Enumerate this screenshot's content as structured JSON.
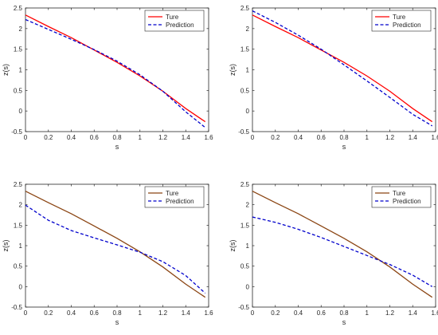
{
  "chart_data": [
    {
      "type": "line",
      "xlabel": "s",
      "ylabel": "z(s)",
      "xlim": [
        0,
        1.6
      ],
      "ylim": [
        -0.5,
        2.5
      ],
      "xticks": [
        "0",
        "0.2",
        "0.4",
        "0.6",
        "0.8",
        "1",
        "1.2",
        "1.4",
        "1.6"
      ],
      "yticks": [
        "-0.5",
        "0",
        "0.5",
        "1",
        "1.5",
        "2",
        "2.5"
      ],
      "legend_position": "top-right",
      "series": [
        {
          "name": "Ture",
          "color": "#ff0000",
          "style": "solid",
          "x": [
            0,
            0.2,
            0.4,
            0.6,
            0.8,
            1.0,
            1.2,
            1.4,
            1.57
          ],
          "y": [
            2.33,
            2.05,
            1.78,
            1.48,
            1.18,
            0.85,
            0.48,
            0.06,
            -0.26
          ]
        },
        {
          "name": "Prediction",
          "color": "#0000cc",
          "style": "dashed",
          "x": [
            0,
            0.2,
            0.4,
            0.6,
            0.8,
            1.0,
            1.2,
            1.4,
            1.57
          ],
          "y": [
            2.22,
            1.98,
            1.74,
            1.49,
            1.21,
            0.88,
            0.48,
            -0.02,
            -0.4
          ]
        }
      ]
    },
    {
      "type": "line",
      "xlabel": "s",
      "ylabel": "z(s)",
      "xlim": [
        0,
        1.6
      ],
      "ylim": [
        -0.5,
        2.5
      ],
      "xticks": [
        "0",
        "0.2",
        "0.4",
        "0.6",
        "0.8",
        "1",
        "1.2",
        "1.4",
        "1.6"
      ],
      "yticks": [
        "-0.5",
        "0",
        "0.5",
        "1",
        "1.5",
        "2",
        "2.5"
      ],
      "legend_position": "top-right",
      "series": [
        {
          "name": "Ture",
          "color": "#ff0000",
          "style": "solid",
          "x": [
            0,
            0.2,
            0.4,
            0.6,
            0.8,
            1.0,
            1.2,
            1.4,
            1.57
          ],
          "y": [
            2.33,
            2.05,
            1.78,
            1.48,
            1.18,
            0.85,
            0.48,
            0.06,
            -0.26
          ]
        },
        {
          "name": "Prediction",
          "color": "#0000cc",
          "style": "dashed",
          "x": [
            0,
            0.2,
            0.4,
            0.6,
            0.8,
            1.0,
            1.2,
            1.4,
            1.57
          ],
          "y": [
            2.43,
            2.15,
            1.84,
            1.5,
            1.12,
            0.73,
            0.33,
            -0.08,
            -0.36
          ]
        }
      ]
    },
    {
      "type": "line",
      "xlabel": "s",
      "ylabel": "z(s)",
      "xlim": [
        0,
        1.6
      ],
      "ylim": [
        -0.5,
        2.5
      ],
      "xticks": [
        "0",
        "0.2",
        "0.4",
        "0.6",
        "0.8",
        "1",
        "1.2",
        "1.4",
        "1.6"
      ],
      "yticks": [
        "-0.5",
        "0",
        "0.5",
        "1",
        "1.5",
        "2",
        "2.5"
      ],
      "legend_position": "top-right",
      "series": [
        {
          "name": "Ture",
          "color": "#8b4513",
          "style": "solid",
          "x": [
            0,
            0.2,
            0.4,
            0.6,
            0.8,
            1.0,
            1.2,
            1.4,
            1.57
          ],
          "y": [
            2.33,
            2.05,
            1.78,
            1.48,
            1.18,
            0.85,
            0.48,
            0.06,
            -0.26
          ]
        },
        {
          "name": "Prediction",
          "color": "#0000cc",
          "style": "dashed",
          "x": [
            0,
            0.2,
            0.4,
            0.6,
            0.8,
            1.0,
            1.2,
            1.4,
            1.57
          ],
          "y": [
            1.99,
            1.62,
            1.37,
            1.19,
            1.02,
            0.84,
            0.61,
            0.27,
            -0.16
          ]
        }
      ]
    },
    {
      "type": "line",
      "xlabel": "s",
      "ylabel": "z(s)",
      "xlim": [
        0,
        1.6
      ],
      "ylim": [
        -0.5,
        2.5
      ],
      "xticks": [
        "0",
        "0.2",
        "0.4",
        "0.6",
        "0.8",
        "1",
        "1.2",
        "1.4",
        "1.6"
      ],
      "yticks": [
        "-0.5",
        "0",
        "0.5",
        "1",
        "1.5",
        "2",
        "2.5"
      ],
      "legend_position": "top-right",
      "series": [
        {
          "name": "Ture",
          "color": "#8b4513",
          "style": "solid",
          "x": [
            0,
            0.2,
            0.4,
            0.6,
            0.8,
            1.0,
            1.2,
            1.4,
            1.57
          ],
          "y": [
            2.33,
            2.05,
            1.78,
            1.48,
            1.18,
            0.85,
            0.48,
            0.06,
            -0.26
          ]
        },
        {
          "name": "Prediction",
          "color": "#0000cc",
          "style": "dashed",
          "x": [
            0,
            0.2,
            0.4,
            0.6,
            0.8,
            1.0,
            1.2,
            1.4,
            1.57
          ],
          "y": [
            1.7,
            1.57,
            1.4,
            1.2,
            0.98,
            0.76,
            0.54,
            0.28,
            0.0
          ]
        }
      ]
    }
  ]
}
